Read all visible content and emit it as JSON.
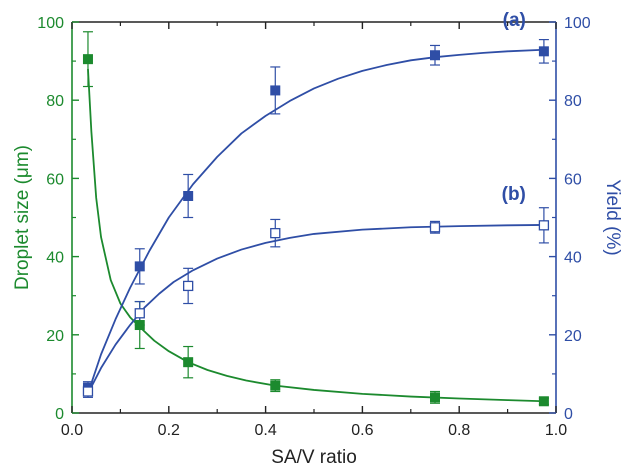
{
  "chart_data": {
    "type": "scatter",
    "xlabel": "SA/V ratio",
    "ylabel_left": "Droplet size (μm)",
    "ylabel_right": "Yield (%)",
    "xlim": [
      0.0,
      1.0
    ],
    "ylim_left": [
      0,
      100
    ],
    "ylim_right": [
      0,
      100
    ],
    "x_ticks": [
      "0.0",
      "0.2",
      "0.4",
      "0.6",
      "0.8",
      "1.0"
    ],
    "y_left_ticks": [
      "0",
      "20",
      "40",
      "60",
      "80",
      "100"
    ],
    "y_right_ticks": [
      "0",
      "20",
      "40",
      "60",
      "80",
      "100"
    ],
    "grid": false,
    "colors": {
      "droplet": "#1c8a2e",
      "yield": "#2f4ea6"
    },
    "series": [
      {
        "axis": "left",
        "marker": "filled-square",
        "x": [
          0.033,
          0.14,
          0.24,
          0.42,
          0.75,
          0.975
        ],
        "y": [
          90.5,
          22.5,
          13.0,
          7.0,
          4.0,
          3.0
        ],
        "error": [
          7.0,
          6.0,
          4.0,
          1.5,
          1.5,
          0.8
        ],
        "fit": [
          [
            0.033,
            88.0
          ],
          [
            0.04,
            72.0
          ],
          [
            0.05,
            55.0
          ],
          [
            0.06,
            45.0
          ],
          [
            0.08,
            34.0
          ],
          [
            0.1,
            28.0
          ],
          [
            0.12,
            24.5
          ],
          [
            0.14,
            22.0
          ],
          [
            0.17,
            18.5
          ],
          [
            0.2,
            15.8
          ],
          [
            0.24,
            13.0
          ],
          [
            0.28,
            11.0
          ],
          [
            0.32,
            9.5
          ],
          [
            0.36,
            8.3
          ],
          [
            0.42,
            7.0
          ],
          [
            0.5,
            5.9
          ],
          [
            0.6,
            4.9
          ],
          [
            0.7,
            4.2
          ],
          [
            0.8,
            3.7
          ],
          [
            0.9,
            3.3
          ],
          [
            0.975,
            3.0
          ]
        ]
      },
      {
        "axis": "right",
        "name": "(a)",
        "marker": "filled-square",
        "x": [
          0.033,
          0.14,
          0.24,
          0.42,
          0.75,
          0.975
        ],
        "y": [
          6.5,
          37.5,
          55.5,
          82.5,
          91.5,
          92.5
        ],
        "error": [
          1.5,
          4.5,
          5.5,
          6.0,
          2.5,
          3.0
        ],
        "fit": [
          [
            0.033,
            5.0
          ],
          [
            0.06,
            15.0
          ],
          [
            0.09,
            24.0
          ],
          [
            0.12,
            32.0
          ],
          [
            0.16,
            41.5
          ],
          [
            0.2,
            50.0
          ],
          [
            0.25,
            58.5
          ],
          [
            0.3,
            65.5
          ],
          [
            0.35,
            71.5
          ],
          [
            0.4,
            76.0
          ],
          [
            0.45,
            79.8
          ],
          [
            0.5,
            83.0
          ],
          [
            0.55,
            85.5
          ],
          [
            0.6,
            87.5
          ],
          [
            0.65,
            89.0
          ],
          [
            0.7,
            90.2
          ],
          [
            0.75,
            91.0
          ],
          [
            0.8,
            91.6
          ],
          [
            0.85,
            92.1
          ],
          [
            0.9,
            92.5
          ],
          [
            0.975,
            92.9
          ]
        ]
      },
      {
        "axis": "right",
        "name": "(b)",
        "marker": "open-square",
        "x": [
          0.033,
          0.14,
          0.24,
          0.42,
          0.75,
          0.975
        ],
        "y": [
          5.5,
          25.5,
          32.5,
          46.0,
          47.5,
          48.0
        ],
        "error": [
          1.5,
          3.0,
          4.5,
          3.5,
          1.5,
          4.5
        ],
        "fit": [
          [
            0.033,
            5.0
          ],
          [
            0.06,
            11.5
          ],
          [
            0.09,
            17.5
          ],
          [
            0.12,
            22.5
          ],
          [
            0.15,
            27.0
          ],
          [
            0.18,
            30.5
          ],
          [
            0.21,
            33.5
          ],
          [
            0.25,
            36.5
          ],
          [
            0.3,
            39.5
          ],
          [
            0.35,
            41.8
          ],
          [
            0.4,
            43.5
          ],
          [
            0.45,
            44.8
          ],
          [
            0.5,
            45.8
          ],
          [
            0.6,
            46.9
          ],
          [
            0.7,
            47.5
          ],
          [
            0.8,
            47.8
          ],
          [
            0.9,
            48.0
          ],
          [
            0.975,
            48.1
          ]
        ]
      }
    ]
  }
}
